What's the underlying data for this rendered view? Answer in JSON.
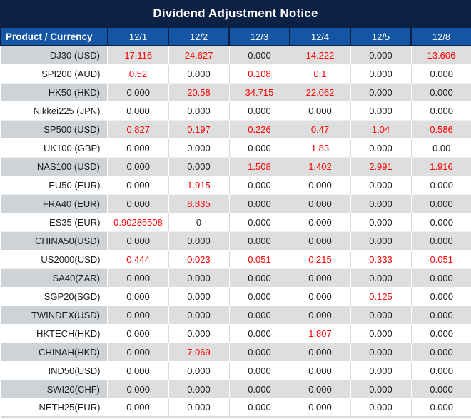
{
  "title": "Dividend Adjustment Notice",
  "colors": {
    "title_bg": "#0d2145",
    "header_bg": "#1456a4",
    "header_text": "#ffffff",
    "value_red": "#ff0000",
    "value_black": "#1c1c1c",
    "row_gray": "#dedede",
    "product_col_gray": "#ced3d7"
  },
  "table": {
    "header": [
      "Product / Currency",
      "12/1",
      "12/2",
      "12/3",
      "12/4",
      "12/5",
      "12/8"
    ],
    "rows": [
      {
        "product": "DJ30 (USD)",
        "values": [
          {
            "v": "17.116",
            "r": true
          },
          {
            "v": "24.627",
            "r": true
          },
          {
            "v": "0.000",
            "r": false
          },
          {
            "v": "14.222",
            "r": true
          },
          {
            "v": "0.000",
            "r": false
          },
          {
            "v": "13.606",
            "r": true
          }
        ]
      },
      {
        "product": "SPI200 (AUD)",
        "values": [
          {
            "v": "0.52",
            "r": true
          },
          {
            "v": "0.000",
            "r": false
          },
          {
            "v": "0.108",
            "r": true
          },
          {
            "v": "0.1",
            "r": true
          },
          {
            "v": "0.000",
            "r": false
          },
          {
            "v": "0.000",
            "r": false
          }
        ]
      },
      {
        "product": "HK50 (HKD)",
        "values": [
          {
            "v": "0.000",
            "r": false
          },
          {
            "v": "20.58",
            "r": true
          },
          {
            "v": "34.715",
            "r": true
          },
          {
            "v": "22.062",
            "r": true
          },
          {
            "v": "0.000",
            "r": false
          },
          {
            "v": "0.000",
            "r": false
          }
        ]
      },
      {
        "product": "Nikkei225 (JPN)",
        "values": [
          {
            "v": "0.000",
            "r": false
          },
          {
            "v": "0.000",
            "r": false
          },
          {
            "v": "0.000",
            "r": false
          },
          {
            "v": "0.000",
            "r": false
          },
          {
            "v": "0.000",
            "r": false
          },
          {
            "v": "0.000",
            "r": false
          }
        ]
      },
      {
        "product": "SP500 (USD)",
        "values": [
          {
            "v": "0.827",
            "r": true
          },
          {
            "v": "0.197",
            "r": true
          },
          {
            "v": "0.226",
            "r": true
          },
          {
            "v": "0.47",
            "r": true
          },
          {
            "v": "1.04",
            "r": true
          },
          {
            "v": "0.586",
            "r": true
          }
        ]
      },
      {
        "product": "UK100 (GBP)",
        "values": [
          {
            "v": "0.000",
            "r": false
          },
          {
            "v": "0.000",
            "r": false
          },
          {
            "v": "0.000",
            "r": false
          },
          {
            "v": "1.83",
            "r": true
          },
          {
            "v": "0.000",
            "r": false
          },
          {
            "v": "0.00",
            "r": false
          }
        ]
      },
      {
        "product": "NAS100 (USD)",
        "values": [
          {
            "v": "0.000",
            "r": false
          },
          {
            "v": "0.000",
            "r": false
          },
          {
            "v": "1.508",
            "r": true
          },
          {
            "v": "1.402",
            "r": true
          },
          {
            "v": "2.991",
            "r": true
          },
          {
            "v": "1.916",
            "r": true
          }
        ]
      },
      {
        "product": "EU50 (EUR)",
        "values": [
          {
            "v": "0.000",
            "r": false
          },
          {
            "v": "1.915",
            "r": true
          },
          {
            "v": "0.000",
            "r": false
          },
          {
            "v": "0.000",
            "r": false
          },
          {
            "v": "0.000",
            "r": false
          },
          {
            "v": "0.000",
            "r": false
          }
        ]
      },
      {
        "product": "FRA40 (EUR)",
        "values": [
          {
            "v": "0.000",
            "r": false
          },
          {
            "v": "8.835",
            "r": true
          },
          {
            "v": "0.000",
            "r": false
          },
          {
            "v": "0.000",
            "r": false
          },
          {
            "v": "0.000",
            "r": false
          },
          {
            "v": "0.000",
            "r": false
          }
        ]
      },
      {
        "product": "ES35 (EUR)",
        "values": [
          {
            "v": "0.90285508",
            "r": true
          },
          {
            "v": "0",
            "r": false
          },
          {
            "v": "0.000",
            "r": false
          },
          {
            "v": "0.000",
            "r": false
          },
          {
            "v": "0.000",
            "r": false
          },
          {
            "v": "0.000",
            "r": false
          }
        ]
      },
      {
        "product": "CHINA50(USD)",
        "values": [
          {
            "v": "0.000",
            "r": false
          },
          {
            "v": "0.000",
            "r": false
          },
          {
            "v": "0.000",
            "r": false
          },
          {
            "v": "0.000",
            "r": false
          },
          {
            "v": "0.000",
            "r": false
          },
          {
            "v": "0.000",
            "r": false
          }
        ]
      },
      {
        "product": "US2000(USD)",
        "values": [
          {
            "v": "0.444",
            "r": true
          },
          {
            "v": "0.023",
            "r": true
          },
          {
            "v": "0.051",
            "r": true
          },
          {
            "v": "0.215",
            "r": true
          },
          {
            "v": "0.333",
            "r": true
          },
          {
            "v": "0.051",
            "r": true
          }
        ]
      },
      {
        "product": "SA40(ZAR)",
        "values": [
          {
            "v": "0.000",
            "r": false
          },
          {
            "v": "0.000",
            "r": false
          },
          {
            "v": "0.000",
            "r": false
          },
          {
            "v": "0.000",
            "r": false
          },
          {
            "v": "0.000",
            "r": false
          },
          {
            "v": "0.000",
            "r": false
          }
        ]
      },
      {
        "product": "SGP20(SGD)",
        "values": [
          {
            "v": "0.000",
            "r": false
          },
          {
            "v": "0.000",
            "r": false
          },
          {
            "v": "0.000",
            "r": false
          },
          {
            "v": "0.000",
            "r": false
          },
          {
            "v": "0.125",
            "r": true
          },
          {
            "v": "0.000",
            "r": false
          }
        ]
      },
      {
        "product": "TWINDEX(USD)",
        "values": [
          {
            "v": "0.000",
            "r": false
          },
          {
            "v": "0.000",
            "r": false
          },
          {
            "v": "0.000",
            "r": false
          },
          {
            "v": "0.000",
            "r": false
          },
          {
            "v": "0.000",
            "r": false
          },
          {
            "v": "0.000",
            "r": false
          }
        ]
      },
      {
        "product": "HKTECH(HKD)",
        "values": [
          {
            "v": "0.000",
            "r": false
          },
          {
            "v": "0.000",
            "r": false
          },
          {
            "v": "0.000",
            "r": false
          },
          {
            "v": "1.807",
            "r": true
          },
          {
            "v": "0.000",
            "r": false
          },
          {
            "v": "0.000",
            "r": false
          }
        ]
      },
      {
        "product": "CHINAH(HKD)",
        "values": [
          {
            "v": "0.000",
            "r": false
          },
          {
            "v": "7.069",
            "r": true
          },
          {
            "v": "0.000",
            "r": false
          },
          {
            "v": "0.000",
            "r": false
          },
          {
            "v": "0.000",
            "r": false
          },
          {
            "v": "0.000",
            "r": false
          }
        ]
      },
      {
        "product": "IND50(USD)",
        "values": [
          {
            "v": "0.000",
            "r": false
          },
          {
            "v": "0.000",
            "r": false
          },
          {
            "v": "0.000",
            "r": false
          },
          {
            "v": "0.000",
            "r": false
          },
          {
            "v": "0.000",
            "r": false
          },
          {
            "v": "0.000",
            "r": false
          }
        ]
      },
      {
        "product": "SWI20(CHF)",
        "values": [
          {
            "v": "0.000",
            "r": false
          },
          {
            "v": "0.000",
            "r": false
          },
          {
            "v": "0.000",
            "r": false
          },
          {
            "v": "0.000",
            "r": false
          },
          {
            "v": "0.000",
            "r": false
          },
          {
            "v": "0.000",
            "r": false
          }
        ]
      },
      {
        "product": "NETH25(EUR)",
        "values": [
          {
            "v": "0.000",
            "r": false
          },
          {
            "v": "0.000",
            "r": false
          },
          {
            "v": "0.000",
            "r": false
          },
          {
            "v": "0.000",
            "r": false
          },
          {
            "v": "0.000",
            "r": false
          },
          {
            "v": "0.000",
            "r": false
          }
        ]
      }
    ]
  }
}
